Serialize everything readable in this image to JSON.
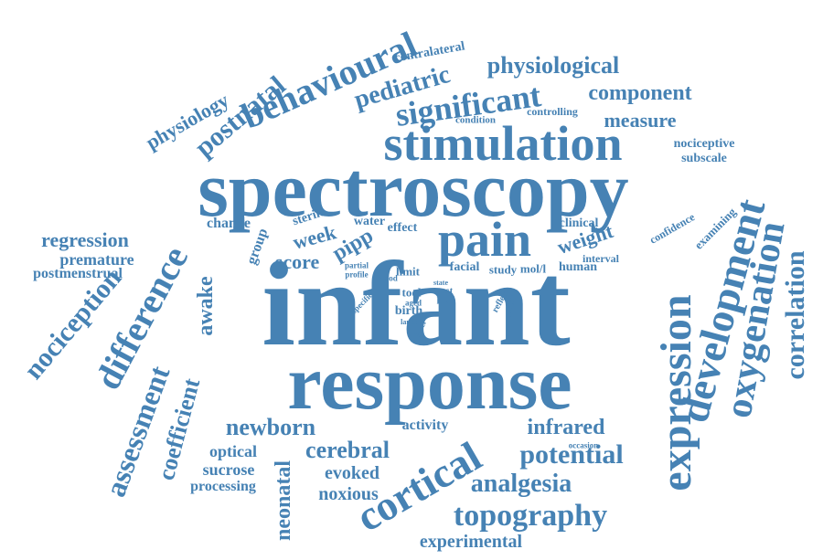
{
  "color": "#4682b4",
  "words": [
    "infant",
    "spectroscopy",
    "response",
    "stimulation",
    "pain",
    "behavioural",
    "expression",
    "development",
    "oxygenation",
    "cortical",
    "difference",
    "nociception",
    "assessment",
    "correlation",
    "significant",
    "pediatric",
    "postnatal",
    "physiological",
    "topography",
    "coefficient",
    "awake",
    "newborn",
    "cerebral",
    "potential",
    "analgesia",
    "infrared",
    "neonatal",
    "component",
    "measure",
    "physiology",
    "regression",
    "premature",
    "postmenstrual",
    "score",
    "week",
    "pipp",
    "weight",
    "optical",
    "sucrose",
    "processing",
    "evoked",
    "noxious",
    "experimental",
    "activity",
    "nociceptive",
    "subscale",
    "examining",
    "contralateral",
    "condition",
    "controlling",
    "change",
    "group",
    "sterile",
    "water",
    "effect",
    "clinical",
    "confidence",
    "interval",
    "facial",
    "study",
    "mol/l",
    "human",
    "limit",
    "blood",
    "partial",
    "profile",
    "specific",
    "tool",
    "aged",
    "birth",
    "lance",
    "level",
    "test",
    "heel",
    "state",
    "reflect",
    "increase",
    "occasion"
  ]
}
